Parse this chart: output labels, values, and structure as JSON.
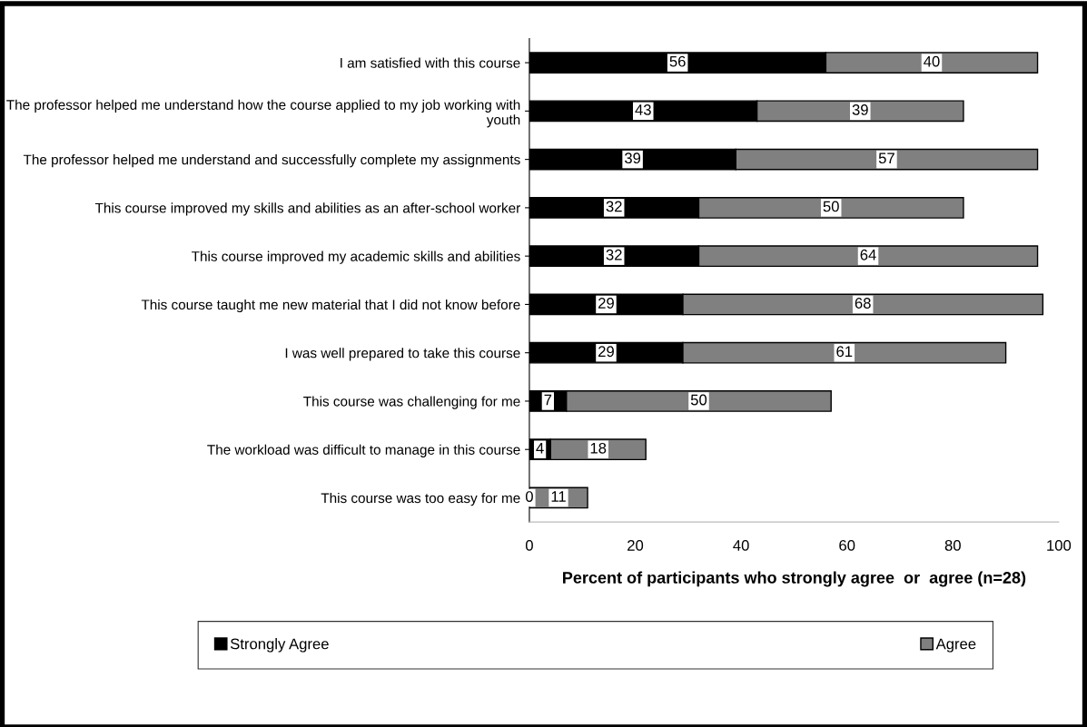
{
  "chart_data": {
    "type": "bar",
    "orientation": "horizontal",
    "stacked": true,
    "xlabel": "Percent of participants who strongly agree  or  agree (n=28)",
    "categories": [
      "I am satisfied with this course",
      "The professor helped me understand how the course applied to my job working with youth",
      "The professor helped me understand and successfully complete my assignments",
      "This course improved my skills and abilities as an after-school worker",
      "This course improved my academic skills and abilities",
      "This course taught me new material that I did not know before",
      "I was well prepared to take this course",
      "This course was challenging for me",
      "The workload was difficult to manage in this course",
      "This course was too easy for me"
    ],
    "series": [
      {
        "name": "Strongly Agree",
        "color": "#000000",
        "values": [
          56,
          43,
          39,
          32,
          32,
          29,
          29,
          7,
          4,
          0
        ]
      },
      {
        "name": "Agree",
        "color": "#808080",
        "values": [
          40,
          39,
          57,
          50,
          64,
          68,
          61,
          50,
          18,
          11
        ]
      }
    ],
    "xlim": [
      0,
      100
    ],
    "xticks": [
      0,
      20,
      40,
      60,
      80,
      100
    ],
    "data_labels": true,
    "legend": "bottom",
    "grid": false
  }
}
